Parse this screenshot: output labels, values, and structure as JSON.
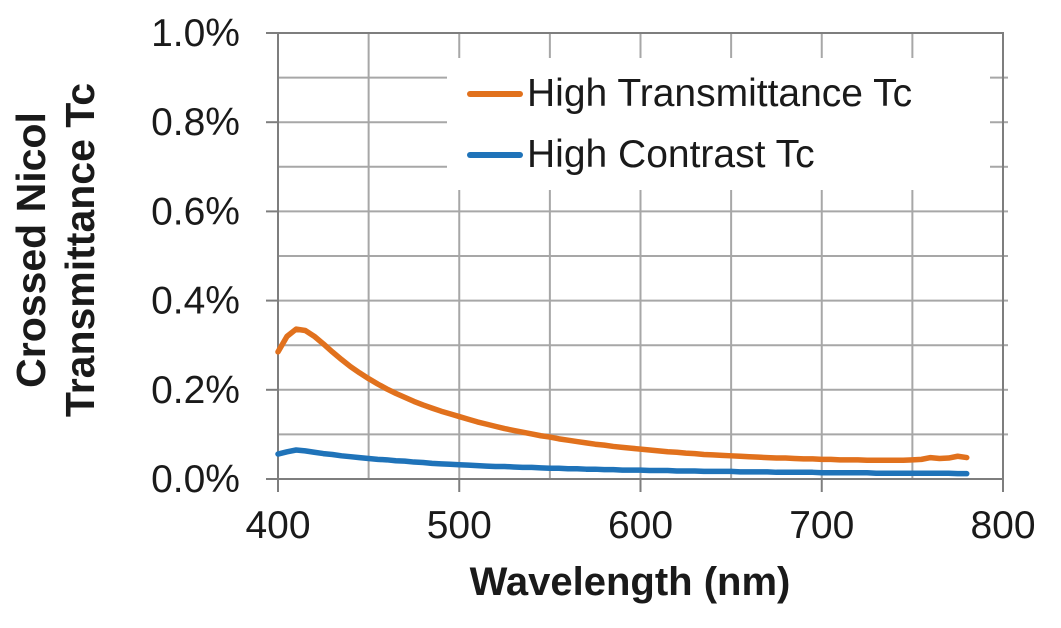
{
  "chart_data": {
    "type": "line",
    "xlabel": "Wavelength (nm)",
    "ylabel_lines": [
      "Crossed Nicol",
      "Transmittance Tc"
    ],
    "xlim": [
      400,
      800
    ],
    "ylim_percent": [
      0.0,
      1.0
    ],
    "x_major_ticks": [
      400,
      500,
      600,
      700,
      800
    ],
    "x_tick_labels": [
      "400",
      "500",
      "600",
      "700",
      "800"
    ],
    "x_minor_grid_step_nm": 50,
    "y_major_ticks_percent": [
      0.0,
      0.2,
      0.4,
      0.6,
      0.8,
      1.0
    ],
    "y_tick_labels": [
      "0.0%",
      "0.2%",
      "0.4%",
      "0.6%",
      "0.8%",
      "1.0%"
    ],
    "y_minor_grid_step_percent": 0.1,
    "grid": true,
    "grid_color": "#a7a7a7",
    "frame_color": "#7e7e7e",
    "text_color": "#1a1a1a",
    "legend_position": "top-right-inside",
    "legend_background": "#ffffff",
    "x": [
      400,
      405,
      410,
      415,
      420,
      425,
      430,
      435,
      440,
      445,
      450,
      455,
      460,
      465,
      470,
      475,
      480,
      485,
      490,
      495,
      500,
      505,
      510,
      515,
      520,
      525,
      530,
      535,
      540,
      545,
      550,
      555,
      560,
      565,
      570,
      575,
      580,
      585,
      590,
      595,
      600,
      605,
      610,
      615,
      620,
      625,
      630,
      635,
      640,
      645,
      650,
      655,
      660,
      665,
      670,
      675,
      680,
      685,
      690,
      695,
      700,
      705,
      710,
      715,
      720,
      725,
      730,
      735,
      740,
      745,
      750,
      755,
      760,
      765,
      770,
      775,
      780
    ],
    "series": [
      {
        "name": "High Transmittance Tc",
        "color": "#e1711d",
        "values_percent": [
          0.285,
          0.32,
          0.336,
          0.333,
          0.32,
          0.303,
          0.285,
          0.268,
          0.252,
          0.238,
          0.225,
          0.213,
          0.202,
          0.192,
          0.183,
          0.174,
          0.166,
          0.159,
          0.152,
          0.146,
          0.14,
          0.134,
          0.128,
          0.123,
          0.118,
          0.113,
          0.109,
          0.105,
          0.101,
          0.097,
          0.094,
          0.09,
          0.087,
          0.084,
          0.081,
          0.078,
          0.076,
          0.073,
          0.071,
          0.069,
          0.067,
          0.065,
          0.063,
          0.061,
          0.06,
          0.058,
          0.057,
          0.055,
          0.054,
          0.053,
          0.052,
          0.051,
          0.05,
          0.049,
          0.048,
          0.047,
          0.047,
          0.046,
          0.045,
          0.045,
          0.044,
          0.044,
          0.043,
          0.043,
          0.043,
          0.042,
          0.042,
          0.042,
          0.042,
          0.042,
          0.043,
          0.044,
          0.048,
          0.046,
          0.047,
          0.051,
          0.048
        ]
      },
      {
        "name": "High Contrast Tc",
        "color": "#1f73b9",
        "values_percent": [
          0.056,
          0.061,
          0.065,
          0.063,
          0.06,
          0.057,
          0.055,
          0.052,
          0.05,
          0.048,
          0.046,
          0.044,
          0.043,
          0.041,
          0.04,
          0.038,
          0.037,
          0.035,
          0.034,
          0.033,
          0.032,
          0.031,
          0.03,
          0.029,
          0.028,
          0.028,
          0.027,
          0.026,
          0.026,
          0.025,
          0.024,
          0.024,
          0.023,
          0.023,
          0.022,
          0.022,
          0.021,
          0.021,
          0.02,
          0.02,
          0.02,
          0.019,
          0.019,
          0.019,
          0.018,
          0.018,
          0.018,
          0.017,
          0.017,
          0.017,
          0.017,
          0.016,
          0.016,
          0.016,
          0.016,
          0.015,
          0.015,
          0.015,
          0.015,
          0.015,
          0.014,
          0.014,
          0.014,
          0.014,
          0.014,
          0.014,
          0.013,
          0.013,
          0.013,
          0.013,
          0.013,
          0.013,
          0.013,
          0.013,
          0.013,
          0.012,
          0.012
        ]
      }
    ]
  }
}
